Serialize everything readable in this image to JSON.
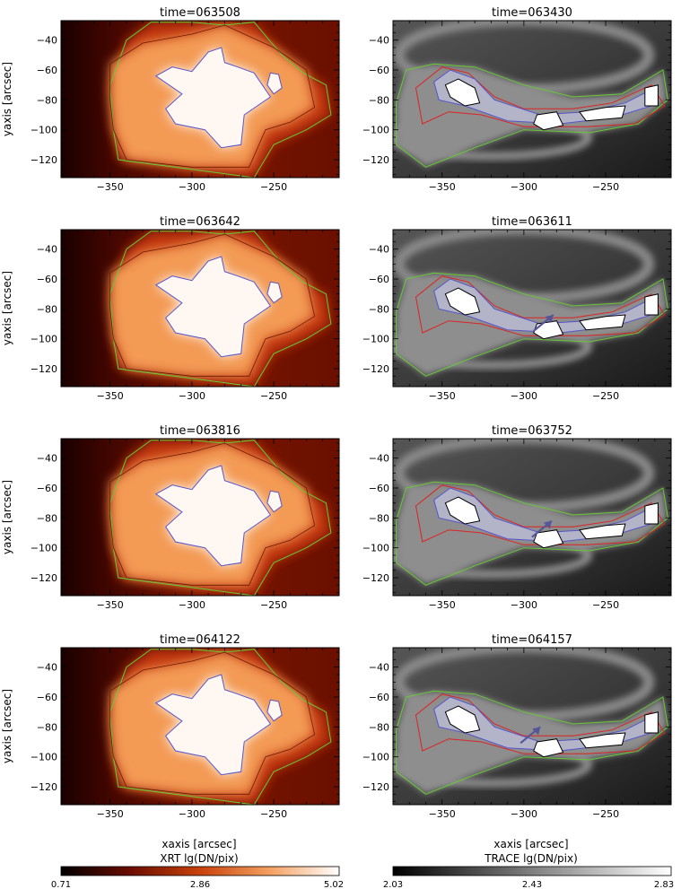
{
  "figure": {
    "xlabel": "xaxis [arcsec]",
    "ylabel": "yaxis [arcsec]"
  },
  "chart_data": [
    {
      "type": "heatmap",
      "instrument": "XRT",
      "title": "time=063508",
      "colormap": "red-temperature",
      "xlabel": "",
      "ylabel": "yaxis [arcsec]",
      "xlim": [
        -380,
        -210
      ],
      "ylim": [
        -132,
        -27
      ],
      "xticks": [
        -350,
        -300,
        -250
      ],
      "yticks": [
        -40,
        -60,
        -80,
        -100,
        -120
      ],
      "contours": [
        "green",
        "blue",
        "black"
      ],
      "arrow": false
    },
    {
      "type": "heatmap",
      "instrument": "TRACE",
      "title": "time=063430",
      "colormap": "gray",
      "xlabel": "",
      "ylabel": "",
      "xlim": [
        -380,
        -210
      ],
      "ylim": [
        -132,
        -27
      ],
      "xticks": [
        -350,
        -300,
        -250
      ],
      "yticks": [
        -40,
        -60,
        -80,
        -100,
        -120
      ],
      "contours": [
        "green",
        "red",
        "blue",
        "black"
      ],
      "arrow": false
    },
    {
      "type": "heatmap",
      "instrument": "XRT",
      "title": "time=063642",
      "colormap": "red-temperature",
      "xlabel": "",
      "ylabel": "yaxis [arcsec]",
      "xlim": [
        -380,
        -210
      ],
      "ylim": [
        -132,
        -27
      ],
      "xticks": [
        -350,
        -300,
        -250
      ],
      "yticks": [
        -40,
        -60,
        -80,
        -100,
        -120
      ],
      "contours": [
        "green",
        "blue",
        "black"
      ],
      "arrow": false
    },
    {
      "type": "heatmap",
      "instrument": "TRACE",
      "title": "time=063611",
      "colormap": "gray",
      "xlabel": "",
      "ylabel": "",
      "xlim": [
        -380,
        -210
      ],
      "ylim": [
        -132,
        -27
      ],
      "xticks": [
        -350,
        -300,
        -250
      ],
      "yticks": [
        -40,
        -60,
        -80,
        -100,
        -120
      ],
      "contours": [
        "green",
        "red",
        "blue",
        "black"
      ],
      "arrow": true,
      "arrow_tip": [
        -282,
        -84
      ]
    },
    {
      "type": "heatmap",
      "instrument": "XRT",
      "title": "time=063816",
      "colormap": "red-temperature",
      "xlabel": "",
      "ylabel": "yaxis [arcsec]",
      "xlim": [
        -380,
        -210
      ],
      "ylim": [
        -132,
        -27
      ],
      "xticks": [
        -350,
        -300,
        -250
      ],
      "yticks": [
        -40,
        -60,
        -80,
        -100,
        -120
      ],
      "contours": [
        "green",
        "blue",
        "black"
      ],
      "arrow": false
    },
    {
      "type": "heatmap",
      "instrument": "TRACE",
      "title": "time=063752",
      "colormap": "gray",
      "xlabel": "",
      "ylabel": "",
      "xlim": [
        -380,
        -210
      ],
      "ylim": [
        -132,
        -27
      ],
      "xticks": [
        -350,
        -300,
        -250
      ],
      "yticks": [
        -40,
        -60,
        -80,
        -100,
        -120
      ],
      "contours": [
        "green",
        "red",
        "blue",
        "black"
      ],
      "arrow": true,
      "arrow_tip": [
        -283,
        -82
      ]
    },
    {
      "type": "heatmap",
      "instrument": "XRT",
      "title": "time=064122",
      "colormap": "red-temperature",
      "xlabel": "xaxis [arcsec]",
      "ylabel": "yaxis [arcsec]",
      "xlim": [
        -380,
        -210
      ],
      "ylim": [
        -132,
        -27
      ],
      "xticks": [
        -350,
        -300,
        -250
      ],
      "yticks": [
        -40,
        -60,
        -80,
        -100,
        -120
      ],
      "contours": [
        "green",
        "blue",
        "black"
      ],
      "arrow": false
    },
    {
      "type": "heatmap",
      "instrument": "TRACE",
      "title": "time=064157",
      "colormap": "gray",
      "xlabel": "xaxis [arcsec]",
      "ylabel": "",
      "xlim": [
        -380,
        -210
      ],
      "ylim": [
        -132,
        -27
      ],
      "xticks": [
        -350,
        -300,
        -250
      ],
      "yticks": [
        -40,
        -60,
        -80,
        -100,
        -120
      ],
      "contours": [
        "green",
        "red",
        "blue",
        "black"
      ],
      "arrow": true,
      "arrow_tip": [
        -290,
        -80
      ]
    }
  ],
  "colorbars": [
    {
      "label": "XRT lg(DN/pix)",
      "ticks": [
        "0.71",
        "2.86",
        "5.02"
      ],
      "colormap": "red-temperature"
    },
    {
      "label": "TRACE lg(DN/pix)",
      "ticks": [
        "2.03",
        "2.43",
        "2.83"
      ],
      "colormap": "gray"
    }
  ],
  "colors": {
    "contour_green": "#66cc33",
    "contour_blue": "#5555cc",
    "contour_red": "#dd2222",
    "contour_black": "#000000",
    "arrow": "#555599",
    "xrt_dark": "#2a0000",
    "xrt_mid": "#e65a10",
    "xrt_bright": "#fff8f2",
    "trace_dark": "#1e1e1e",
    "trace_bright": "#ffffff"
  }
}
